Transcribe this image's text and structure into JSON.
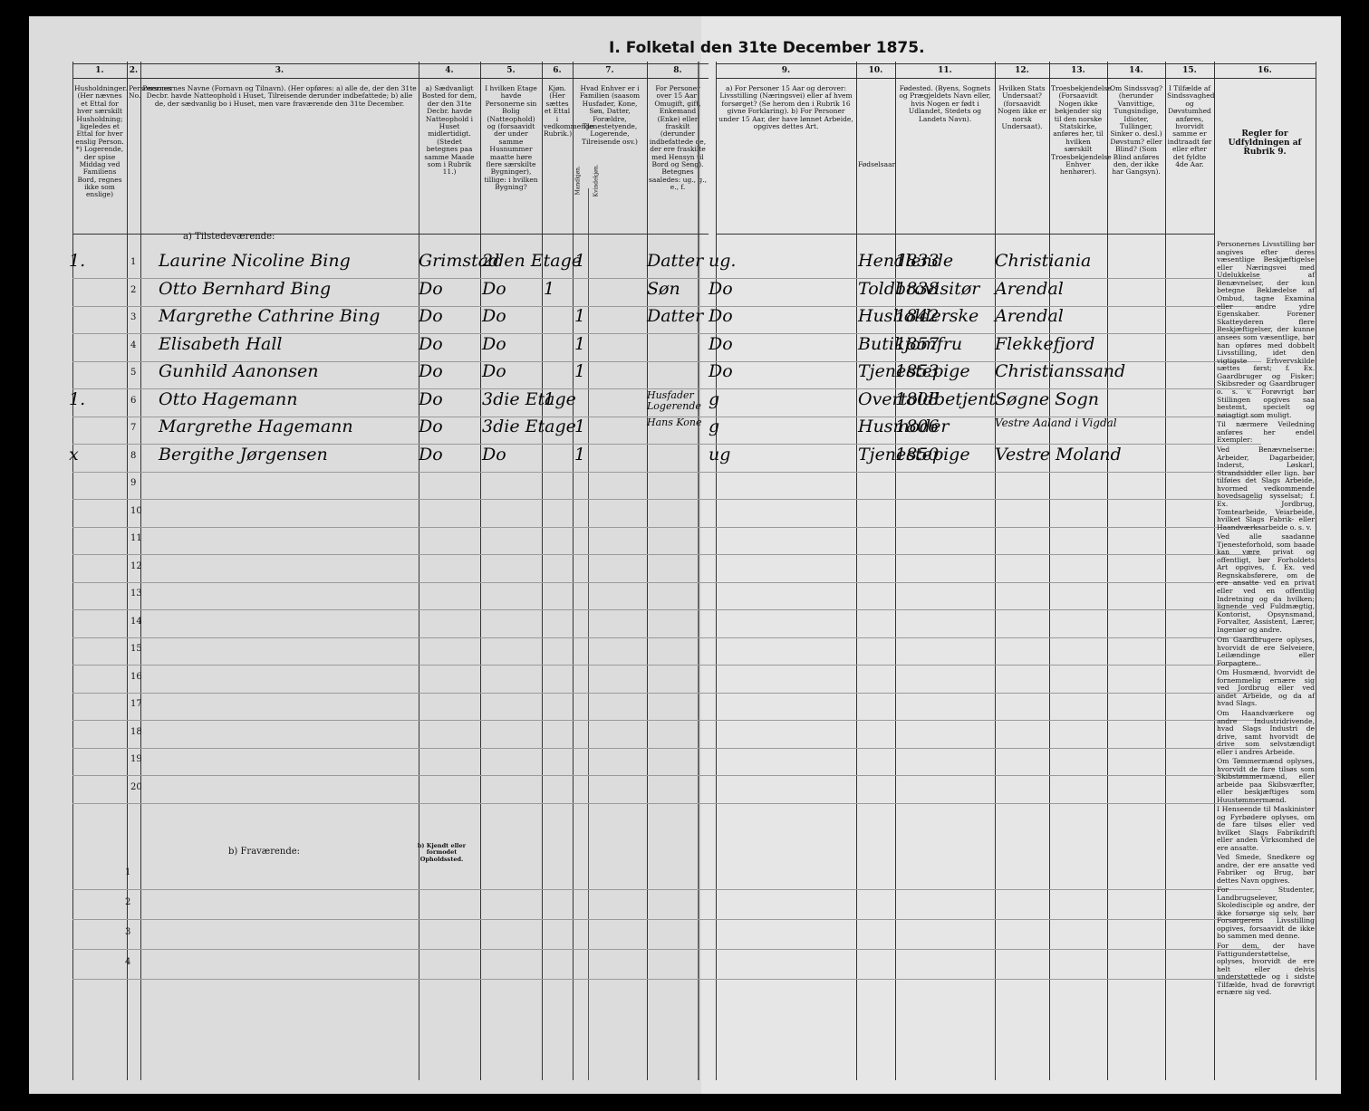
{
  "header": {
    "title": "I. Folketal den 31te December 1875."
  },
  "columns": [
    {
      "number": "1.",
      "text": "Husholdninger. (Her nævnes et Ettal for hver særskilt Husholdning; ligeledes et Ettal for hver enslig Person. *) Logerende, der spise Middag ved Familiens Bord, regnes ikke som enslige)"
    },
    {
      "number": "2.",
      "text": "Personernes No."
    },
    {
      "number": "3.",
      "text": "Personernes Navne (Fornavn og Tilnavn). (Her opføres: a) alle de, der den 31te Decbr. havde Natteophold i Huset, Tilreisende derunder indbefattede; b) alle de, der sædvanlig bo i Huset, men vare fraværende den 31te December."
    },
    {
      "number": "4.",
      "text": "a) Sædvanligt Bosted for dem, der den 31te Decbr. havde Natteophold i Huset midlertidigt. (Stedet betegnes paa samme Maade som i Rubrik 11.)"
    },
    {
      "number": "5.",
      "text": "I hvilken Etage havde Personerne sin Bolig (Natteophold) og (forsaavidt der under samme Husnummer maatte høre flere særskilte Bygninger), tillige: i hvilken Bygning?"
    },
    {
      "number": "6.",
      "text": "Kjøn. (Her sættes et Ettal i vedkommende Rubrik.)"
    },
    {
      "number": "7.",
      "text": "Hvad Enhver er i Familien (saasom Husfader, Kone, Søn, Datter, Forældre, Tjenestetyende, Logerende, Tilreisende osv.)"
    },
    {
      "number": "8.",
      "text": "For Personer over 15 Aar: Omugift, gift, Enkemand (Enke) eller fraskilt (derunder indbefattede de, der ere fraskilte med Hensyn til Bord og Seng). Betegnes saaledes: ug., g., e., f."
    },
    {
      "number": "9.",
      "text": "a) For Personer 15 Aar og derover: Livsstilling (Næringsvei) eller af hvem forsørget? (Se herom den i Rubrik 16 givne Forklaring). b) For Personer under 15 Aar, der have lønnet Arbeide, opgives dettes Art."
    },
    {
      "number": "10.",
      "text": "Fødselsaar."
    },
    {
      "number": "11.",
      "text": "Fødested. (Byens, Sognets og Prægjeldets Navn eller, hvis Nogen er født i Udlandet, Stedets og Landets Navn)."
    },
    {
      "number": "12.",
      "text": "Hvilken Stats Undersaat? (forsaavidt Nogen ikke er norsk Undersaat)."
    },
    {
      "number": "13.",
      "text": "Troesbekjendelse. (Forsaavidt Nogen ikke bekjender sig til den norske Statskirke, anføres her, til hvilken særskilt Troesbekjendelse Enhver henhører)."
    },
    {
      "number": "14.",
      "text": "Om Sindssvag? (herunder Vanvittige, Tungsindige, Idioter, Tullinger, Sinker o. desl.) Døvstum? eller Blind? (Som Blind anføres den, der ikke har Gangsyn)."
    },
    {
      "number": "15.",
      "text": "I Tilfælde af Sindssvaghed og Døvstumhed anføres, hvorvidt samme er indtraadt før eller efter det fyldte 4de Aar."
    },
    {
      "number": "16.",
      "text": "Regler for Udfyldningen af Rubrik 9."
    }
  ],
  "sex_subheaders": [
    "Mandkjøn.",
    "Kvindekjøn."
  ],
  "present_label": "a) Tilstedeværende:",
  "absent_label": "b) Fraværende:",
  "absent_place_label": "b) Kjendt eller formodet Opholdssted.",
  "present_row_numbers": [
    "1",
    "2",
    "3",
    "4",
    "5",
    "6",
    "7",
    "8",
    "9",
    "10",
    "11",
    "12",
    "13",
    "14",
    "15",
    "16",
    "17",
    "18",
    "19",
    "20"
  ],
  "absent_row_numbers": [
    "1",
    "2",
    "3",
    "4"
  ],
  "rows": [
    {
      "household": "1.",
      "name": "Laurine Nicoline Bing",
      "residence": "Grimstad",
      "floor": "2den Etage",
      "male": "",
      "female": "1",
      "relation": "Datter",
      "status": "ug.",
      "occupation": "Hendlende",
      "birth_year": "1833",
      "birthplace": "Christiania"
    },
    {
      "household": "",
      "name": "Otto Bernhard Bing",
      "residence": "Do",
      "floor": "Do",
      "male": "1",
      "female": "",
      "relation": "Søn",
      "status": "Do",
      "occupation": "Toldbrovisitør",
      "birth_year": "1838",
      "birthplace": "Arendal"
    },
    {
      "household": "",
      "name": "Margrethe Cathrine Bing",
      "residence": "Do",
      "floor": "Do",
      "male": "",
      "female": "1",
      "relation": "Datter",
      "status": "Do",
      "occupation": "Husholderske",
      "birth_year": "1842",
      "birthplace": "Arendal"
    },
    {
      "household": "",
      "name": "Elisabeth Hall",
      "residence": "Do",
      "floor": "Do",
      "male": "",
      "female": "1",
      "relation": "",
      "status": "Do",
      "occupation": "Butikjomfru",
      "birth_year": "1857",
      "birthplace": "Flekkefjord"
    },
    {
      "household": "",
      "name": "Gunhild Aanonsen",
      "residence": "Do",
      "floor": "Do",
      "male": "",
      "female": "1",
      "relation": "",
      "status": "Do",
      "occupation": "Tjenestepige",
      "birth_year": "1853",
      "birthplace": "Christianssand"
    },
    {
      "household": "1.",
      "name": "Otto Hagemann",
      "residence": "Do",
      "floor": "3die Etage",
      "male": "1",
      "female": "",
      "relation": "Husfader Logerende",
      "status": "g",
      "occupation": "Overtoldbetjent",
      "birth_year": "1808",
      "birthplace": "Søgne Sogn"
    },
    {
      "household": "",
      "name": "Margrethe Hagemann",
      "residence": "Do",
      "floor": "3die Etage",
      "male": "",
      "female": "1",
      "relation": "Hans Kone",
      "status": "g",
      "occupation": "Husmoder",
      "birth_year": "1806",
      "birthplace": "Vestre Aaland i Vigdal"
    },
    {
      "household": "x",
      "name": "Bergithe Jørgensen",
      "residence": "Do",
      "floor": "Do",
      "male": "",
      "female": "1",
      "relation": "",
      "status": "ug",
      "occupation": "Tjenestepige",
      "birth_year": "1850",
      "birthplace": "Vestre Moland"
    }
  ],
  "rules": [
    "Personernes Livsstilling bør angives efter deres væsentlige Beskjæftigelse eller Næringsvei med Udelukkelse af Benævnelser, der kun betegne Beklædelse af Ombud, tagne Examina eller andre ydre Egenskaber. Forener Skatteyderen flere Beskjæftigelser, der kunne ansees som væsentlige, bør han opføres med dobbelt Livsstilling, idet den vigtigste Erhvervskilde sættes først; f. Ex. Gaardbruger og Fisker; Skibsreder og Gaardbruger o. s. v. Forøvrigt bør Stillingen opgives saa bestemt, specielt og nøiagtigt som muligt.",
    "Til nærmere Veiledning anføres her endel Exempler:",
    "Ved Benævnelserne: Arbeider, Dagarbeider, Inderst, Løskarl, Strandsidder eller lign. bør tilføies det Slags Arbeide, hvormed vedkommende hovedsagelig sysselsat; f. Ex. Jordbrug, Tomtearbeide, Veiarbeide, hvilket Slags Fabrik- eller Haandværksarbeide o. s. v.",
    "Ved alle saadanne Tjenesteforhold, som baade kan være privat og offentligt, bør Forholdets Art opgives, f. Ex. ved Regnskabsførere, om de ere ansatte ved en privat eller ved en offentlig Indretning og da hvilken; lignende ved Fuldmægtig, Kontorist, Opsynsmand, Forvalter, Assistent, Lærer, Ingeniør og andre.",
    "Om Gaardbrugere oplyses, hvorvidt de ere Selveiere, Leilændinge eller Forpagtere.",
    "Om Husmænd, hvorvidt de fornemmelig ernære sig ved Jordbrug eller ved andet Arbeide, og da af hvad Slags.",
    "Om Haandværkere og andre Industridrivende, hvad Slags Industri de drive, samt hvorvidt de drive som selvstændigt eller i andres Arbeide.",
    "Om Tømmermænd oplyses, hvorvidt de fare tilsøs som Skibstømmermænd, eller arbeide paa Skibsværfter, eller beskjæftiges som Huustømmermænd.",
    "I Henseende til Maskinister og Fyrbødere oplyses, om de fare tilsøs eller ved hvilket Slags Fabrikdrift eller anden Virksomhed de ere ansatte.",
    "Ved Smede, Snedkere og andre, der ere ansatte ved Fabriker og Brug, bør dettes Navn opgives.",
    "For Studenter, Landbrugselever, Skoledisciple og andre, der ikke forsørge sig selv, bør Forsørgerens Livsstilling opgives, forsaavidt de ikke bo sammen med denne.",
    "For dem, der have Fattigunderstøttelse, oplyses, hvorvidt de ere helt eller delvis understøttede og i sidste Tilfælde, hvad de forøvrigt ernære sig ved."
  ]
}
